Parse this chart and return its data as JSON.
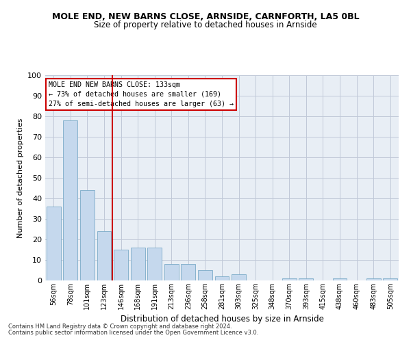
{
  "title": "MOLE END, NEW BARNS CLOSE, ARNSIDE, CARNFORTH, LA5 0BL",
  "subtitle": "Size of property relative to detached houses in Arnside",
  "xlabel": "Distribution of detached houses by size in Arnside",
  "ylabel": "Number of detached properties",
  "categories": [
    "56sqm",
    "78sqm",
    "101sqm",
    "123sqm",
    "146sqm",
    "168sqm",
    "191sqm",
    "213sqm",
    "236sqm",
    "258sqm",
    "281sqm",
    "303sqm",
    "325sqm",
    "348sqm",
    "370sqm",
    "393sqm",
    "415sqm",
    "438sqm",
    "460sqm",
    "483sqm",
    "505sqm"
  ],
  "values": [
    36,
    78,
    44,
    24,
    15,
    16,
    16,
    8,
    8,
    5,
    2,
    3,
    0,
    0,
    1,
    1,
    0,
    1,
    0,
    1,
    1
  ],
  "bar_color": "#c5d8ed",
  "bar_edge_color": "#7aaac8",
  "vline_x_index": 3,
  "vline_color": "#cc0000",
  "annotation_lines": [
    "MOLE END NEW BARNS CLOSE: 133sqm",
    "← 73% of detached houses are smaller (169)",
    "27% of semi-detached houses are larger (63) →"
  ],
  "annotation_box_color": "#cc0000",
  "ylim": [
    0,
    100
  ],
  "yticks": [
    0,
    10,
    20,
    30,
    40,
    50,
    60,
    70,
    80,
    90,
    100
  ],
  "grid_color": "#c0c8d8",
  "bg_color": "#e8eef5",
  "footer_line1": "Contains HM Land Registry data © Crown copyright and database right 2024.",
  "footer_line2": "Contains public sector information licensed under the Open Government Licence v3.0."
}
